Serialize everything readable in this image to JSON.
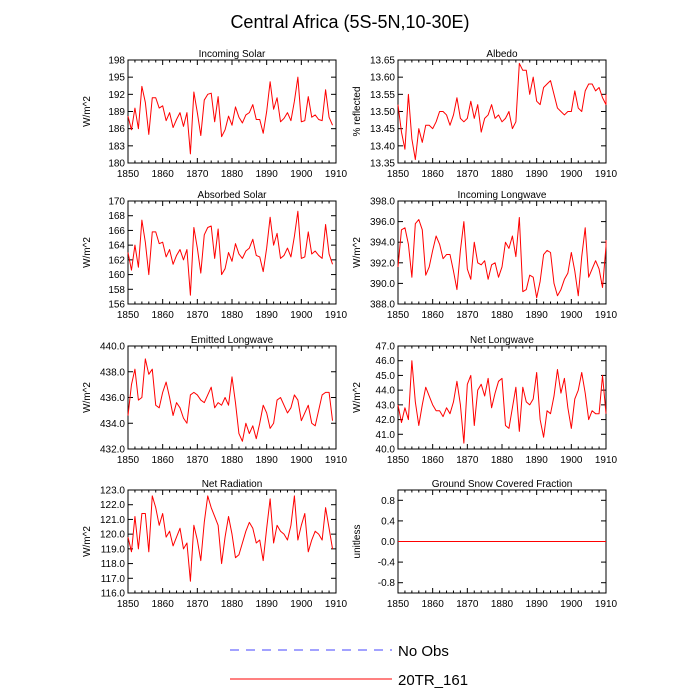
{
  "figure": {
    "title": "Central Africa (5S-5N,10-30E)"
  },
  "legend": {
    "items": [
      {
        "label": "No Obs",
        "color": "#4444ff",
        "dash": true
      },
      {
        "label": "20TR_161",
        "color": "#ff0000",
        "dash": false
      }
    ]
  },
  "colors": {
    "model": "#ff0000",
    "obs_dash_a": "#ff0000",
    "obs_dash_b": "#4444ff"
  },
  "chart_data": [
    {
      "type": "line",
      "title": "Incoming Solar",
      "ylabel": "W/m^2",
      "ylim": [
        180,
        198
      ],
      "yticks": [
        "180",
        "183",
        "186",
        "189",
        "192",
        "195",
        "198"
      ],
      "xlim": [
        1850,
        1910
      ],
      "xticks": [
        "1850",
        "1860",
        "1870",
        "1880",
        "1890",
        "1900",
        "1910"
      ],
      "x_start": 1850,
      "series": [
        {
          "values": [
            188.2,
            185.8,
            189.6,
            186.0,
            193.4,
            190.6,
            185.0,
            191.4,
            191.4,
            189.6,
            190.0,
            187.4,
            188.8,
            186.2,
            187.6,
            188.8,
            186.4,
            188.8,
            181.6,
            192.4,
            188.8,
            184.8,
            191.0,
            192.0,
            192.2,
            187.2,
            191.6,
            184.6,
            185.8,
            188.2,
            186.6,
            189.8,
            188.0,
            187.0,
            188.4,
            188.8,
            190.2,
            187.6,
            187.6,
            185.2,
            189.0,
            194.2,
            189.4,
            191.4,
            187.2,
            187.8,
            188.8,
            187.4,
            190.8,
            195.0,
            187.2,
            187.4,
            191.6,
            188.0,
            188.4,
            187.6,
            187.4,
            192.8,
            188.0,
            186.6
          ]
        }
      ]
    },
    {
      "type": "line",
      "title": "Albedo",
      "ylabel": "% reflected",
      "ylim": [
        13.35,
        13.65
      ],
      "yticks": [
        "13.35",
        "13.40",
        "13.45",
        "13.50",
        "13.55",
        "13.60",
        "13.65"
      ],
      "xlim": [
        1850,
        1910
      ],
      "xticks": [
        "1850",
        "1860",
        "1870",
        "1880",
        "1890",
        "1900",
        "1910"
      ],
      "x_start": 1850,
      "series": [
        {
          "values": [
            13.52,
            13.44,
            13.39,
            13.55,
            13.42,
            13.36,
            13.45,
            13.41,
            13.46,
            13.46,
            13.45,
            13.47,
            13.5,
            13.5,
            13.49,
            13.46,
            13.49,
            13.54,
            13.48,
            13.47,
            13.48,
            13.53,
            13.48,
            13.52,
            13.44,
            13.48,
            13.49,
            13.52,
            13.48,
            13.49,
            13.47,
            13.48,
            13.5,
            13.45,
            13.47,
            13.64,
            13.62,
            13.62,
            13.55,
            13.6,
            13.53,
            13.52,
            13.57,
            13.58,
            13.59,
            13.55,
            13.51,
            13.5,
            13.49,
            13.5,
            13.5,
            13.56,
            13.51,
            13.5,
            13.56,
            13.58,
            13.58,
            13.56,
            13.57,
            13.54,
            13.52,
            13.55
          ]
        }
      ]
    },
    {
      "type": "line",
      "title": "Absorbed Solar",
      "ylabel": "W/m^2",
      "ylim": [
        156,
        170
      ],
      "yticks": [
        "156",
        "158",
        "160",
        "162",
        "164",
        "166",
        "168",
        "170"
      ],
      "xlim": [
        1850,
        1910
      ],
      "xticks": [
        "1850",
        "1860",
        "1870",
        "1880",
        "1890",
        "1900",
        "1910"
      ],
      "x_start": 1850,
      "series": [
        {
          "values": [
            163.0,
            160.6,
            164.0,
            161.0,
            167.4,
            164.4,
            160.0,
            165.8,
            165.8,
            164.2,
            164.4,
            162.4,
            163.4,
            161.4,
            162.6,
            163.4,
            162.0,
            163.4,
            157.2,
            166.4,
            163.6,
            160.2,
            165.4,
            166.4,
            166.6,
            162.2,
            166.2,
            160.0,
            160.8,
            163.0,
            161.8,
            164.2,
            162.8,
            162.2,
            163.2,
            163.6,
            164.8,
            162.6,
            162.4,
            160.4,
            163.6,
            167.8,
            164.0,
            165.6,
            162.2,
            162.6,
            163.6,
            162.4,
            165.2,
            168.6,
            162.2,
            162.4,
            165.8,
            162.8,
            163.2,
            162.6,
            162.2,
            166.8,
            162.8,
            161.4
          ]
        }
      ]
    },
    {
      "type": "line",
      "title": "Incoming Longwave",
      "ylabel": "W/m^2",
      "ylim": [
        388,
        398
      ],
      "yticks": [
        "388.0",
        "390.0",
        "392.0",
        "394.0",
        "396.0",
        "398.0"
      ],
      "xlim": [
        1850,
        1910
      ],
      "xticks": [
        "1850",
        "1860",
        "1870",
        "1880",
        "1890",
        "1900",
        "1910"
      ],
      "x_start": 1850,
      "series": [
        {
          "values": [
            391.6,
            395.2,
            395.4,
            393.8,
            390.6,
            395.8,
            396.2,
            395.2,
            390.8,
            391.6,
            393.2,
            394.6,
            393.8,
            392.4,
            392.8,
            392.8,
            391.2,
            389.4,
            393.2,
            396.0,
            391.4,
            390.4,
            394.0,
            392.0,
            391.8,
            392.2,
            390.4,
            391.8,
            392.0,
            390.6,
            391.6,
            394.0,
            393.4,
            394.6,
            392.6,
            396.4,
            389.2,
            389.4,
            390.8,
            390.6,
            388.6,
            390.2,
            392.8,
            393.2,
            393.0,
            390.0,
            388.8,
            389.4,
            390.4,
            391.0,
            393.0,
            391.2,
            388.8,
            392.6,
            395.4,
            390.6,
            391.4,
            392.2,
            391.4,
            389.6,
            393.6,
            394.2
          ]
        }
      ]
    },
    {
      "type": "line",
      "title": "Emitted Longwave",
      "ylabel": "W/m^2",
      "ylim": [
        432,
        440
      ],
      "yticks": [
        "432.0",
        "434.0",
        "436.0",
        "438.0",
        "440.0"
      ],
      "xlim": [
        1850,
        1910
      ],
      "xticks": [
        "1850",
        "1860",
        "1870",
        "1880",
        "1890",
        "1900",
        "1910"
      ],
      "x_start": 1850,
      "series": [
        {
          "values": [
            434.6,
            437.0,
            438.2,
            435.8,
            436.0,
            439.0,
            437.8,
            438.2,
            435.4,
            435.2,
            436.4,
            437.2,
            436.0,
            434.6,
            435.6,
            435.2,
            434.4,
            434.0,
            436.2,
            436.4,
            436.2,
            435.8,
            435.6,
            436.2,
            436.8,
            435.2,
            435.6,
            435.4,
            436.0,
            435.4,
            437.6,
            435.6,
            433.2,
            432.6,
            434.0,
            433.2,
            433.8,
            432.8,
            434.0,
            435.4,
            434.8,
            433.6,
            434.0,
            435.8,
            436.0,
            435.4,
            434.8,
            435.2,
            436.2,
            435.8,
            434.2,
            434.8,
            435.4,
            434.0,
            433.8,
            435.0,
            436.2,
            436.4,
            436.4,
            434.2
          ]
        }
      ]
    },
    {
      "type": "line",
      "title": "Net Longwave",
      "ylabel": "W/m^2",
      "ylim": [
        40,
        47
      ],
      "yticks": [
        "40.0",
        "41.0",
        "42.0",
        "43.0",
        "44.0",
        "45.0",
        "46.0",
        "47.0"
      ],
      "xlim": [
        1850,
        1910
      ],
      "xticks": [
        "1850",
        "1860",
        "1870",
        "1880",
        "1890",
        "1900",
        "1910"
      ],
      "x_start": 1850,
      "series": [
        {
          "values": [
            43.0,
            41.8,
            42.8,
            42.0,
            46.0,
            43.2,
            41.6,
            43.0,
            44.2,
            43.6,
            43.0,
            42.6,
            42.6,
            42.2,
            42.8,
            42.4,
            43.2,
            44.6,
            43.0,
            40.4,
            44.4,
            45.0,
            41.6,
            44.0,
            44.4,
            43.6,
            44.8,
            42.8,
            43.8,
            44.6,
            44.8,
            41.6,
            41.4,
            42.8,
            44.2,
            41.2,
            44.2,
            43.2,
            43.0,
            43.4,
            45.2,
            42.0,
            40.8,
            42.6,
            42.4,
            43.6,
            45.4,
            43.8,
            44.8,
            42.8,
            41.4,
            43.4,
            44.0,
            45.2,
            43.8,
            42.0,
            42.6,
            42.4,
            42.4,
            45.0,
            42.4
          ]
        }
      ]
    },
    {
      "type": "line",
      "title": "Net Radiation",
      "ylabel": "W/m^2",
      "ylim": [
        116,
        123
      ],
      "yticks": [
        "116.0",
        "117.0",
        "118.0",
        "119.0",
        "120.0",
        "121.0",
        "122.0",
        "123.0"
      ],
      "xlim": [
        1850,
        1910
      ],
      "xticks": [
        "1850",
        "1860",
        "1870",
        "1880",
        "1890",
        "1900",
        "1910"
      ],
      "x_start": 1850,
      "series": [
        {
          "values": [
            119.8,
            118.8,
            121.2,
            119.0,
            121.4,
            121.4,
            118.8,
            122.6,
            121.8,
            120.6,
            121.4,
            119.8,
            120.2,
            119.2,
            119.8,
            120.4,
            119.0,
            119.4,
            116.8,
            120.6,
            119.6,
            118.2,
            120.8,
            122.6,
            121.8,
            121.2,
            120.6,
            118.0,
            119.8,
            121.2,
            120.0,
            118.4,
            118.6,
            119.4,
            120.2,
            120.8,
            120.4,
            119.4,
            119.6,
            118.2,
            120.4,
            122.4,
            119.4,
            120.6,
            120.2,
            120.0,
            119.6,
            120.6,
            122.6,
            119.6,
            120.6,
            121.4,
            118.8,
            119.6,
            120.2,
            120.0,
            119.6,
            121.8,
            120.4,
            119.0
          ]
        }
      ]
    },
    {
      "type": "line",
      "title": "Ground Snow Covered Fraction",
      "ylabel": "unitless",
      "ylim": [
        -1,
        1
      ],
      "yticks": [
        "-0.8",
        "-0.4",
        "0.0",
        "0.4",
        "0.8"
      ],
      "ytick_values": [
        -0.8,
        -0.4,
        0.0,
        0.4,
        0.8
      ],
      "xlim": [
        1850,
        1910
      ],
      "xticks": [
        "1850",
        "1860",
        "1870",
        "1880",
        "1890",
        "1900",
        "1910"
      ],
      "x_start": 1850,
      "series": [
        {
          "values": [
            0,
            0,
            0,
            0,
            0,
            0,
            0,
            0,
            0,
            0,
            0,
            0,
            0,
            0,
            0,
            0,
            0,
            0,
            0,
            0,
            0,
            0,
            0,
            0,
            0,
            0,
            0,
            0,
            0,
            0,
            0,
            0,
            0,
            0,
            0,
            0,
            0,
            0,
            0,
            0,
            0,
            0,
            0,
            0,
            0,
            0,
            0,
            0,
            0,
            0,
            0,
            0,
            0,
            0,
            0,
            0,
            0,
            0,
            0,
            0,
            0
          ]
        }
      ]
    }
  ]
}
